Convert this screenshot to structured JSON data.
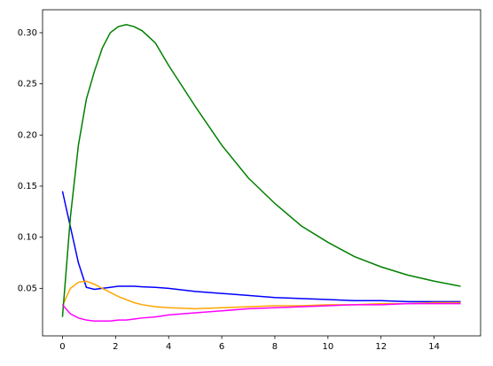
{
  "chart_data": {
    "type": "line",
    "x": [
      0,
      0.3,
      0.6,
      0.9,
      1.2,
      1.5,
      1.8,
      2.1,
      2.4,
      2.7,
      3,
      3.5,
      4,
      5,
      6,
      7,
      8,
      9,
      10,
      11,
      12,
      13,
      14,
      15
    ],
    "series": [
      {
        "color": "#0000ff",
        "values": [
          0.145,
          0.11,
          0.075,
          0.051,
          0.049,
          0.05,
          0.051,
          0.052,
          0.052,
          0.052,
          0.0515,
          0.051,
          0.05,
          0.047,
          0.045,
          0.043,
          0.041,
          0.04,
          0.039,
          0.038,
          0.038,
          0.037,
          0.037,
          0.037
        ]
      },
      {
        "color": "#ffa500",
        "values": [
          0.033,
          0.05,
          0.056,
          0.057,
          0.054,
          0.05,
          0.046,
          0.042,
          0.039,
          0.036,
          0.034,
          0.032,
          0.031,
          0.03,
          0.031,
          0.032,
          0.033,
          0.033,
          0.034,
          0.034,
          0.035,
          0.035,
          0.036,
          0.036
        ]
      },
      {
        "color": "#008000",
        "values": [
          0.022,
          0.12,
          0.19,
          0.235,
          0.262,
          0.285,
          0.3,
          0.306,
          0.308,
          0.306,
          0.302,
          0.29,
          0.268,
          0.228,
          0.19,
          0.158,
          0.133,
          0.111,
          0.095,
          0.081,
          0.071,
          0.063,
          0.057,
          0.052
        ]
      },
      {
        "color": "#ff00ff",
        "values": [
          0.034,
          0.025,
          0.021,
          0.019,
          0.018,
          0.018,
          0.018,
          0.019,
          0.019,
          0.02,
          0.021,
          0.022,
          0.024,
          0.026,
          0.028,
          0.03,
          0.031,
          0.032,
          0.033,
          0.034,
          0.034,
          0.035,
          0.035,
          0.035
        ]
      }
    ],
    "xlim": [
      -0.75,
      15.75
    ],
    "xticks": [
      0,
      2,
      4,
      6,
      8,
      10,
      12,
      14
    ],
    "ylim": [
      0.0035,
      0.3225
    ],
    "yticks": [
      0.05,
      {
        "value": 0.1,
        "label": "0.10"
      },
      0.15,
      {
        "value": 0.2,
        "label": "0.20"
      },
      0.25,
      {
        "value": 0.3,
        "label": "0.30"
      }
    ]
  }
}
